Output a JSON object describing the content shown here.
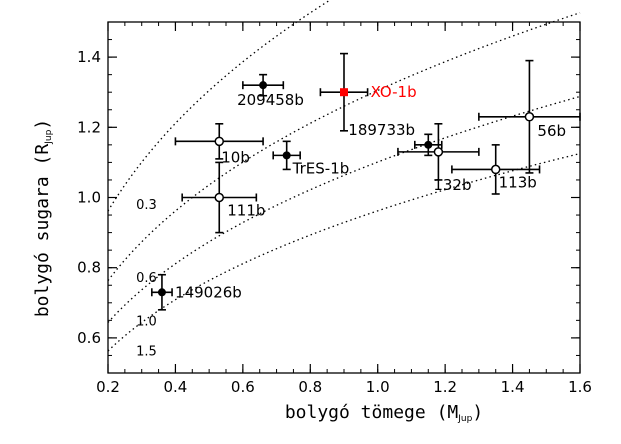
{
  "chart_data": {
    "type": "scatter",
    "xlabel": "bolygó tömege",
    "xlabel_unit": "(M",
    "xlabel_unit_sub": "Jup",
    "ylabel": "bolygó sugara",
    "ylabel_unit": "(R",
    "ylabel_unit_sub": "Jup",
    "unit_close": ")",
    "xlim": [
      0.2,
      1.6
    ],
    "ylim": [
      0.5,
      1.5
    ],
    "xticks": [
      0.2,
      0.4,
      0.6,
      0.8,
      1.0,
      1.2,
      1.4,
      1.6
    ],
    "xtick_labels": [
      "0.2",
      "0.4",
      "0.6",
      "0.8",
      "1.0",
      "1.2",
      "1.4",
      "1.6"
    ],
    "yticks": [
      0.6,
      0.8,
      1.0,
      1.2,
      1.4
    ],
    "ytick_labels": [
      "0.6",
      "0.8",
      "1.0",
      "1.2",
      "1.4"
    ],
    "grid": false,
    "highlight_color": "#ff0000",
    "default_color": "#000000",
    "points": [
      {
        "name": "209458b",
        "x": 0.66,
        "y": 1.32,
        "xerr": 0.06,
        "yerr": 0.03,
        "marker": "filled",
        "highlight": false,
        "label_pos": "below"
      },
      {
        "name": "XO-1b",
        "x": 0.9,
        "y": 1.3,
        "xerr": 0.07,
        "yerr": 0.11,
        "marker": "square",
        "highlight": true,
        "label_pos": "right"
      },
      {
        "name": "189733b",
        "x": 1.15,
        "y": 1.15,
        "xerr": 0.04,
        "yerr": 0.03,
        "marker": "filled",
        "highlight": false,
        "label_pos": "below-right"
      },
      {
        "name": "56b",
        "x": 1.45,
        "y": 1.23,
        "xerr": 0.15,
        "yerr": 0.16,
        "marker": "open",
        "highlight": false,
        "label_pos": "below-right"
      },
      {
        "name": "10b",
        "x": 0.53,
        "y": 1.16,
        "xerr": 0.13,
        "yerr": 0.05,
        "marker": "open",
        "highlight": false,
        "label_pos": "below"
      },
      {
        "name": "TrES-1b",
        "x": 0.73,
        "y": 1.12,
        "xerr": 0.04,
        "yerr": 0.04,
        "marker": "filled",
        "highlight": false,
        "label_pos": "below-right"
      },
      {
        "name": "132b",
        "x": 1.18,
        "y": 1.13,
        "xerr": 0.12,
        "yerr": 0.08,
        "marker": "open",
        "highlight": false,
        "label_pos": "below"
      },
      {
        "name": "113b",
        "x": 1.35,
        "y": 1.08,
        "xerr": 0.13,
        "yerr": 0.07,
        "marker": "open",
        "highlight": false,
        "label_pos": "below"
      },
      {
        "name": "111b",
        "x": 0.53,
        "y": 1.0,
        "xerr": 0.11,
        "yerr": 0.1,
        "marker": "open",
        "highlight": false,
        "label_pos": "below"
      },
      {
        "name": "149026b",
        "x": 0.36,
        "y": 0.73,
        "xerr": 0.03,
        "yerr": 0.05,
        "marker": "filled",
        "highlight": false,
        "label_pos": "right"
      }
    ],
    "density_curves": [
      {
        "label": "0.3",
        "radius_at_1MJup": 1.644
      },
      {
        "label": "0.6",
        "radius_at_1MJup": 1.305
      },
      {
        "label": "1.0",
        "radius_at_1MJup": 1.101
      },
      {
        "label": "1.5",
        "radius_at_1MJup": 0.962
      }
    ]
  }
}
